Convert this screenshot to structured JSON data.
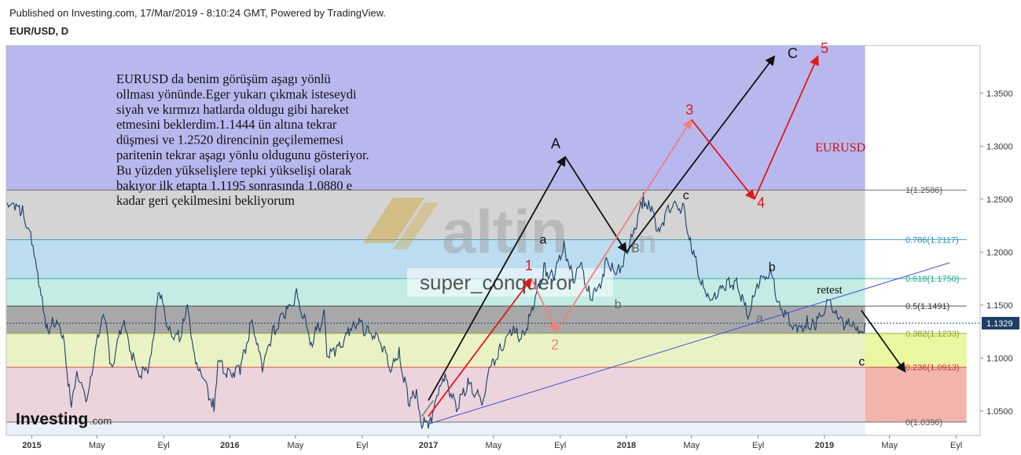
{
  "header": {
    "published": "Published on Investing.com, 17/Mar/2019 - 8:10:24 GMT, Powered by TradingView.",
    "symbol": "EUR/USD, D"
  },
  "watermark": {
    "logo": "altin",
    "logo_suffix": "in",
    "user": "super_conqueror",
    "brand": "Investing",
    "brand_suffix": ".com"
  },
  "colors": {
    "zone_top": "#b8b8ee",
    "zone_1_786": "#d4d4d4",
    "zone_786_618": "#bcdcf0",
    "zone_618_5": "#c2ece4",
    "zone_5_382": "#a8a8a8",
    "zone_382_236": "#eaf2c4",
    "zone_236_0": "#ecd4dc",
    "price_line": "#1d3f66",
    "trend_line": "#3f4fd8",
    "red": "#e01818",
    "black": "#111111"
  },
  "chart_data": {
    "type": "line",
    "title": "EUR/USD, D",
    "ylim": [
      1.027,
      1.395
    ],
    "y_ticks": [
      1.05,
      1.1,
      1.15,
      1.2,
      1.25,
      1.3,
      1.35
    ],
    "y_tick_labels": [
      "1.0500",
      "1.1000",
      "1.1500",
      "1.2000",
      "1.2500",
      "1.3000",
      "1.3500"
    ],
    "x_ticks": [
      "2015-01-01",
      "2015-05-01",
      "2015-09-01",
      "2016-01-01",
      "2016-05-01",
      "2016-09-01",
      "2017-01-01",
      "2017-05-01",
      "2017-09-01",
      "2018-01-01",
      "2018-05-01",
      "2018-09-01",
      "2019-01-01",
      "2019-05-01",
      "2019-09-01"
    ],
    "x_tick_labels": [
      "2015",
      "May",
      "Eyl",
      "2016",
      "May",
      "Eyl",
      "2017",
      "May",
      "Eyl",
      "2018",
      "May",
      "Eyl",
      "2019",
      "May",
      "Eyl"
    ],
    "xlim": [
      "2014-11-15",
      "2019-10-15"
    ],
    "current_price": 1.1329,
    "current_price_label": "1.1329",
    "series": [
      {
        "points": [
          [
            "2014-11-15",
            1.246
          ],
          [
            "2014-12-01",
            1.245
          ],
          [
            "2014-12-15",
            1.238
          ],
          [
            "2015-01-01",
            1.21
          ],
          [
            "2015-01-10",
            1.18
          ],
          [
            "2015-01-20",
            1.16
          ],
          [
            "2015-01-27",
            1.125
          ],
          [
            "2015-02-10",
            1.135
          ],
          [
            "2015-02-28",
            1.12
          ],
          [
            "2015-03-05",
            1.1
          ],
          [
            "2015-03-15",
            1.05
          ],
          [
            "2015-03-25",
            1.09
          ],
          [
            "2015-04-13",
            1.055
          ],
          [
            "2015-04-30",
            1.12
          ],
          [
            "2015-05-15",
            1.14
          ],
          [
            "2015-05-27",
            1.09
          ],
          [
            "2015-06-18",
            1.135
          ],
          [
            "2015-07-07",
            1.1
          ],
          [
            "2015-07-20",
            1.085
          ],
          [
            "2015-08-05",
            1.09
          ],
          [
            "2015-08-24",
            1.165
          ],
          [
            "2015-09-10",
            1.125
          ],
          [
            "2015-09-30",
            1.12
          ],
          [
            "2015-10-15",
            1.145
          ],
          [
            "2015-10-30",
            1.1
          ],
          [
            "2015-11-15",
            1.075
          ],
          [
            "2015-12-03",
            1.055
          ],
          [
            "2015-12-10",
            1.095
          ],
          [
            "2016-01-01",
            1.085
          ],
          [
            "2016-01-20",
            1.09
          ],
          [
            "2016-02-11",
            1.135
          ],
          [
            "2016-03-01",
            1.09
          ],
          [
            "2016-03-20",
            1.125
          ],
          [
            "2016-04-10",
            1.14
          ],
          [
            "2016-05-03",
            1.16
          ],
          [
            "2016-05-30",
            1.115
          ],
          [
            "2016-06-23",
            1.14
          ],
          [
            "2016-06-28",
            1.105
          ],
          [
            "2016-07-15",
            1.105
          ],
          [
            "2016-08-18",
            1.135
          ],
          [
            "2016-09-10",
            1.125
          ],
          [
            "2016-09-30",
            1.12
          ],
          [
            "2016-10-25",
            1.09
          ],
          [
            "2016-11-08",
            1.105
          ],
          [
            "2016-11-25",
            1.06
          ],
          [
            "2016-12-10",
            1.065
          ],
          [
            "2016-12-20",
            1.04
          ],
          [
            "2017-01-03",
            1.035
          ],
          [
            "2017-01-15",
            1.065
          ],
          [
            "2017-02-01",
            1.08
          ],
          [
            "2017-02-22",
            1.055
          ],
          [
            "2017-03-15",
            1.075
          ],
          [
            "2017-04-10",
            1.06
          ],
          [
            "2017-04-25",
            1.09
          ],
          [
            "2017-05-15",
            1.11
          ],
          [
            "2017-06-05",
            1.125
          ],
          [
            "2017-06-25",
            1.12
          ],
          [
            "2017-07-15",
            1.15
          ],
          [
            "2017-08-02",
            1.185
          ],
          [
            "2017-08-20",
            1.175
          ],
          [
            "2017-09-08",
            1.205
          ],
          [
            "2017-09-25",
            1.175
          ],
          [
            "2017-10-10",
            1.185
          ],
          [
            "2017-10-26",
            1.16
          ],
          [
            "2017-11-08",
            1.16
          ],
          [
            "2017-11-27",
            1.195
          ],
          [
            "2017-12-12",
            1.175
          ],
          [
            "2018-01-01",
            1.2
          ],
          [
            "2018-01-20",
            1.225
          ],
          [
            "2018-02-01",
            1.25
          ],
          [
            "2018-02-15",
            1.24
          ],
          [
            "2018-03-01",
            1.22
          ],
          [
            "2018-03-25",
            1.245
          ],
          [
            "2018-04-17",
            1.24
          ],
          [
            "2018-05-01",
            1.205
          ],
          [
            "2018-05-29",
            1.155
          ],
          [
            "2018-06-15",
            1.16
          ],
          [
            "2018-07-05",
            1.17
          ],
          [
            "2018-07-25",
            1.17
          ],
          [
            "2018-08-15",
            1.135
          ],
          [
            "2018-08-28",
            1.17
          ],
          [
            "2018-09-24",
            1.18
          ],
          [
            "2018-10-10",
            1.15
          ],
          [
            "2018-11-12",
            1.125
          ],
          [
            "2018-11-30",
            1.135
          ],
          [
            "2018-12-14",
            1.13
          ],
          [
            "2019-01-10",
            1.155
          ],
          [
            "2019-01-25",
            1.14
          ],
          [
            "2019-02-10",
            1.13
          ],
          [
            "2019-02-25",
            1.135
          ],
          [
            "2019-03-07",
            1.12
          ],
          [
            "2019-03-17",
            1.1329
          ]
        ]
      }
    ],
    "fib_levels": [
      {
        "ratio": 1.0,
        "price": 1.2586,
        "label": "1(1.2586)",
        "color": "#555555"
      },
      {
        "ratio": 0.786,
        "price": 1.2117,
        "label": "0.786(1.2117)",
        "color": "#2a8fb8"
      },
      {
        "ratio": 0.618,
        "price": 1.175,
        "label": "0.618(1.1750)",
        "color": "#1eaa8a"
      },
      {
        "ratio": 0.5,
        "price": 1.1491,
        "label": "0.5(1.1491)",
        "color": "#333333"
      },
      {
        "ratio": 0.382,
        "price": 1.1233,
        "label": "0.382(1.1233)",
        "color": "#8aa020"
      },
      {
        "ratio": 0.236,
        "price": 1.0913,
        "label": "0.236(1.0913)",
        "color": "#cc3030"
      },
      {
        "ratio": 0.0,
        "price": 1.0396,
        "label": "0(1.0396)",
        "color": "#555555"
      }
    ],
    "fib_start": "2014-11-15",
    "fib_end": "2019-03-17",
    "trend_line": [
      [
        "2017-01-03",
        1.038
      ],
      [
        "2019-08-20",
        1.19
      ]
    ],
    "black_path": [
      [
        "2017-01-01",
        1.06
      ],
      [
        "2017-09-10",
        1.29
      ],
      [
        "2018-01-01",
        1.2
      ],
      [
        "2018-10-01",
        1.385
      ]
    ],
    "red_path": [
      [
        "2017-01-01",
        1.045
      ],
      [
        "2017-07-10",
        1.175
      ],
      [
        "2017-08-25",
        1.125
      ],
      [
        "2018-05-01",
        1.325
      ],
      [
        "2018-08-25",
        1.25
      ],
      [
        "2018-12-20",
        1.385
      ]
    ],
    "grey_path": [
      [
        "2016-12-20",
        1.045
      ],
      [
        "2017-01-10",
        1.06
      ]
    ],
    "projection_arrow": [
      [
        "2019-03-10",
        1.145
      ],
      [
        "2019-05-30",
        1.087
      ]
    ],
    "projection_box": {
      "from": "2019-03-17",
      "to": "2019-09-20"
    },
    "text_block": {
      "lines": [
        "EURUSD da benim görüşüm aşagı yönlü",
        "ollması yönünde.Eger yukarı çıkmak isteseydi",
        "siyah ve kırmızı hatlarda oldugu gibi hareket",
        "etmesini beklerdim.1.1444 ün altına tekrar",
        "düşmesi ve 1.2520 direncinin geçilememesi",
        "paritenin tekrar aşagı yönlu oldugunu gösteriyor.",
        "Bu yüzden yükselişlere tepki yükselişi olarak",
        "bakıyor ilk etapta 1.1195 sonrasında 1.0880 e",
        "kadar geri çekilmesini bekliyorum"
      ],
      "color": "#111111"
    },
    "annotations": [
      {
        "text": "A",
        "x": "2017-08-15",
        "y": 1.298,
        "color": "#111111",
        "size": 18
      },
      {
        "text": "C",
        "x": "2018-10-25",
        "y": 1.383,
        "color": "#111111",
        "size": 18
      },
      {
        "text": "B",
        "x": "2018-01-10",
        "y": 1.2,
        "color": "#666666",
        "size": 16
      },
      {
        "text": "a",
        "x": "2017-07-25",
        "y": 1.208,
        "color": "#111111",
        "size": 16
      },
      {
        "text": "b",
        "x": "2017-12-10",
        "y": 1.147,
        "color": "#666666",
        "size": 16
      },
      {
        "text": "c",
        "x": "2018-04-15",
        "y": 1.25,
        "color": "#111111",
        "size": 16
      },
      {
        "text": "b",
        "x": "2018-09-20",
        "y": 1.182,
        "color": "#111111",
        "size": 16
      },
      {
        "text": "a",
        "x": "2018-08-28",
        "y": 1.134,
        "color": "#666666",
        "size": 16
      },
      {
        "text": "retest",
        "x": "2018-12-18",
        "y": 1.161,
        "color": "#111111",
        "size": 15
      },
      {
        "text": "c",
        "x": "2019-03-05",
        "y": 1.093,
        "color": "#111111",
        "size": 16
      },
      {
        "text": "1",
        "x": "2017-06-28",
        "y": 1.183,
        "color": "#e01818",
        "size": 18
      },
      {
        "text": "2",
        "x": "2017-08-15",
        "y": 1.108,
        "color": "#f08080",
        "size": 18
      },
      {
        "text": "3",
        "x": "2018-04-20",
        "y": 1.33,
        "color": "#e01818",
        "size": 18
      },
      {
        "text": "4",
        "x": "2018-08-30",
        "y": 1.242,
        "color": "#e01818",
        "size": 18
      },
      {
        "text": "5",
        "x": "2018-12-25",
        "y": 1.388,
        "color": "#e01818",
        "size": 18
      },
      {
        "text": "EURUSD",
        "x": "2018-12-15",
        "y": 1.295,
        "color": "#cc1010",
        "size": 16
      }
    ]
  }
}
